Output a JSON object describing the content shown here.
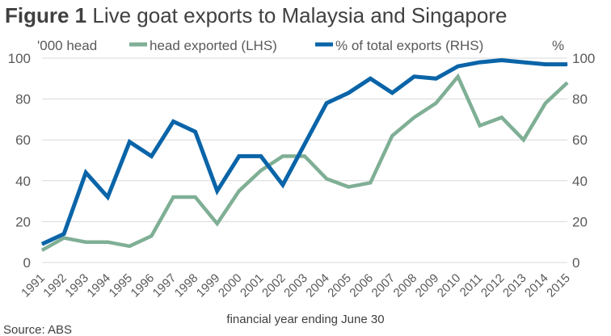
{
  "chart_data": {
    "type": "line",
    "title_prefix": "Figure 1",
    "title": "Live goat exports to Malaysia and Singapore",
    "ylabel_left": "'000 head",
    "ylabel_right": "%",
    "xlabel": "financial year ending June 30",
    "source": "Source: ABS",
    "ylim_left": [
      0,
      100
    ],
    "ylim_right": [
      0,
      100
    ],
    "yticks_left": [
      "0",
      "20",
      "40",
      "60",
      "80",
      "100"
    ],
    "yticks_right": [
      "0",
      "20",
      "40",
      "60",
      "80",
      "100"
    ],
    "legend_position": "top",
    "grid": "horizontal",
    "x": [
      "1991",
      "1992",
      "1993",
      "1994",
      "1995",
      "1996",
      "1997",
      "1998",
      "1999",
      "2000",
      "2001",
      "2002",
      "2003",
      "2004",
      "2005",
      "2006",
      "2007",
      "2008",
      "2009",
      "2010",
      "2011",
      "2012",
      "2013",
      "2014",
      "2015"
    ],
    "series": [
      {
        "name": "head exported (LHS)",
        "axis": "left",
        "color": "#7FAF95",
        "values": [
          6,
          12,
          10,
          10,
          8,
          13,
          32,
          32,
          19,
          35,
          45,
          52,
          52,
          41,
          37,
          39,
          62,
          71,
          78,
          91,
          67,
          71,
          60,
          78,
          88
        ]
      },
      {
        "name": "% of total exports (RHS)",
        "axis": "right",
        "color": "#0A64A8",
        "values": [
          9,
          14,
          44,
          32,
          59,
          52,
          69,
          64,
          35,
          52,
          52,
          38,
          58,
          78,
          83,
          90,
          83,
          91,
          90,
          96,
          98,
          99,
          98,
          97,
          97
        ]
      }
    ]
  }
}
